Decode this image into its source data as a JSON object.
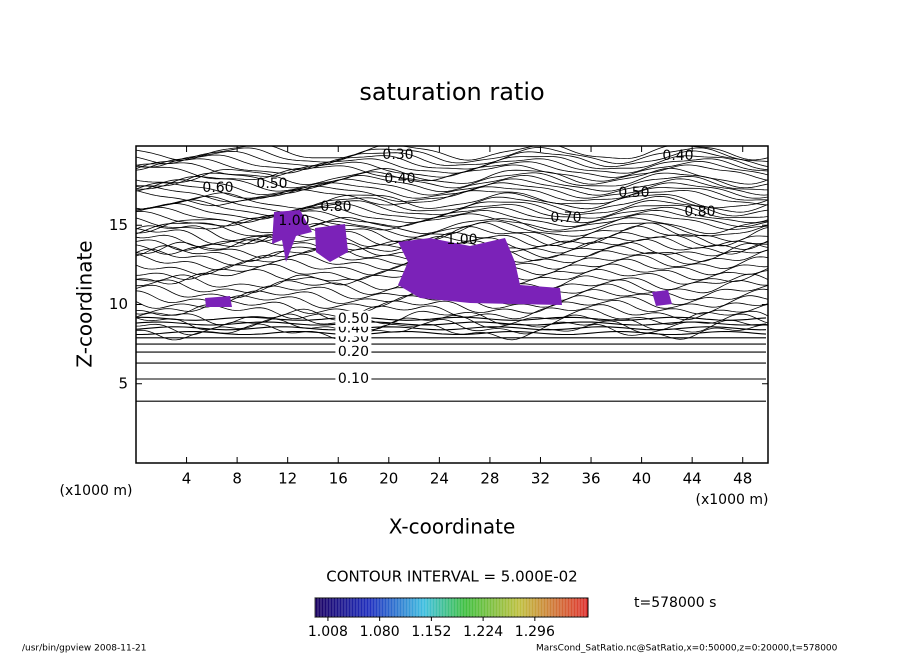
{
  "chart_data": {
    "type": "contour",
    "title": "saturation ratio",
    "x_label": "X-coordinate",
    "y_label": "Z-coordinate",
    "x_unit": "(x1000 m)",
    "y_unit": "(x1000 m)",
    "xlim": [
      0,
      50
    ],
    "xticks": [
      4,
      8,
      12,
      16,
      20,
      24,
      28,
      32,
      36,
      40,
      44,
      48
    ],
    "ylim": [
      0,
      20
    ],
    "yticks": [
      5,
      10,
      15
    ],
    "contours": {
      "levels": [
        0.05,
        0.1,
        0.15,
        0.2,
        0.25,
        0.3,
        0.35,
        0.4,
        0.45,
        0.5
      ],
      "z": [
        3.9,
        5.3,
        6.3,
        7.0,
        7.5,
        7.9,
        8.2,
        8.5,
        8.8,
        9.1
      ],
      "level_labels": [
        null,
        "0.10",
        null,
        "0.20",
        null,
        "0.30",
        null,
        "0.40",
        null,
        "0.50"
      ],
      "color": "#000000"
    },
    "annotations": [
      "0.30",
      "0.40",
      "0.40",
      "0.50",
      "0.50",
      "0.60",
      "0.80",
      "1.00",
      "0.80",
      "0.70",
      "1.00"
    ],
    "contour_interval": "CONTOUR INTERVAL = 5.000E-02",
    "fill_color": "#7b22b8",
    "colorbar": {
      "clim": [
        0.99,
        1.37
      ],
      "ticks": [
        {
          "value": 1.008,
          "label": "1.008"
        },
        {
          "value": 1.08,
          "label": "1.080"
        },
        {
          "value": 1.152,
          "label": "1.152"
        },
        {
          "value": 1.224,
          "label": "1.224"
        },
        {
          "value": 1.296,
          "label": "1.296"
        }
      ]
    },
    "time_label": "t=578000 s",
    "footer_left": "/usr/bin/gpview  2008-11-21",
    "footer_right": "MarsCond_SatRatio.nc@SatRatio,x=0:50000,z=0:20000,t=578000"
  }
}
